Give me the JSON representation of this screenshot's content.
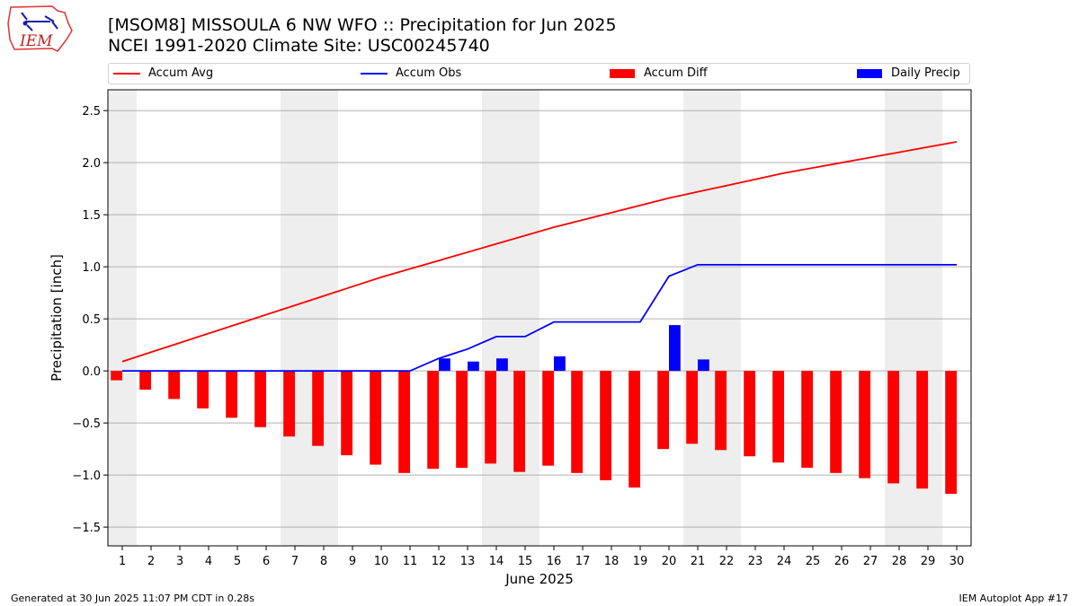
{
  "header": {
    "title": "[MSOM8] MISSOULA 6 NW WFO :: Precipitation for Jun 2025",
    "subtitle": "NCEI 1991-2020 Climate Site: USC00245740",
    "logo_text": "IEM"
  },
  "legend": {
    "items": [
      {
        "label": "Accum Avg",
        "kind": "line",
        "color": "#ff0000"
      },
      {
        "label": "Accum Obs",
        "kind": "line",
        "color": "#0000ff"
      },
      {
        "label": "Accum Diff",
        "kind": "box",
        "color": "#ff0000"
      },
      {
        "label": "Daily Precip",
        "kind": "box",
        "color": "#0000ff"
      }
    ]
  },
  "footer": {
    "generated": "Generated at 30 Jun 2025 11:07 PM CDT in 0.28s",
    "app": "IEM Autoplot App #17"
  },
  "chart_data": {
    "type": "bar",
    "xlabel": "June 2025",
    "ylabel": "Precipitation [inch]",
    "x": [
      1,
      2,
      3,
      4,
      5,
      6,
      7,
      8,
      9,
      10,
      11,
      12,
      13,
      14,
      15,
      16,
      17,
      18,
      19,
      20,
      21,
      22,
      23,
      24,
      25,
      26,
      27,
      28,
      29,
      30
    ],
    "xlim": [
      0.5,
      30.5
    ],
    "ylim": [
      -1.68,
      2.7
    ],
    "yticks": [
      -1.5,
      -1.0,
      -0.5,
      0.0,
      0.5,
      1.0,
      1.5,
      2.0,
      2.5
    ],
    "ytick_labels": [
      "−1.5",
      "−1.0",
      "−0.5",
      "0.0",
      "0.5",
      "1.0",
      "1.5",
      "2.0",
      "2.5"
    ],
    "grid": "horizontal",
    "weekend_days": [
      1,
      7,
      8,
      14,
      15,
      21,
      22,
      28,
      29
    ],
    "colors": {
      "avg": "#ff0000",
      "obs": "#0000ff",
      "diff": "#ff0000",
      "daily": "#0000ff",
      "weekend": "#eeeeee",
      "grid": "#b0b0b0"
    },
    "series": [
      {
        "name": "Accum Avg",
        "type": "line",
        "values": [
          0.09,
          0.18,
          0.27,
          0.36,
          0.45,
          0.54,
          0.63,
          0.72,
          0.81,
          0.9,
          0.98,
          1.06,
          1.14,
          1.22,
          1.3,
          1.38,
          1.45,
          1.52,
          1.59,
          1.66,
          1.72,
          1.78,
          1.84,
          1.9,
          1.95,
          2.0,
          2.05,
          2.1,
          2.15,
          2.2
        ]
      },
      {
        "name": "Accum Obs",
        "type": "line",
        "values": [
          0,
          0,
          0,
          0,
          0,
          0,
          0,
          0,
          0,
          0,
          0,
          0.12,
          0.21,
          0.33,
          0.33,
          0.47,
          0.47,
          0.47,
          0.47,
          0.91,
          1.02,
          1.02,
          1.02,
          1.02,
          1.02,
          1.02,
          1.02,
          1.02,
          1.02,
          1.02
        ]
      },
      {
        "name": "Accum Diff",
        "type": "bar",
        "values": [
          -0.09,
          -0.18,
          -0.27,
          -0.36,
          -0.45,
          -0.54,
          -0.63,
          -0.72,
          -0.81,
          -0.9,
          -0.98,
          -0.94,
          -0.93,
          -0.89,
          -0.97,
          -0.91,
          -0.98,
          -1.05,
          -1.12,
          -0.75,
          -0.7,
          -0.76,
          -0.82,
          -0.88,
          -0.93,
          -0.98,
          -1.03,
          -1.08,
          -1.13,
          -1.18
        ]
      },
      {
        "name": "Daily Precip",
        "type": "bar",
        "values": [
          0,
          0,
          0,
          0,
          0,
          0,
          0,
          0,
          0,
          0,
          0,
          0.12,
          0.09,
          0.12,
          0,
          0.14,
          0,
          0,
          0,
          0.44,
          0.11,
          0,
          0,
          0,
          0,
          0,
          0,
          0,
          0,
          0
        ]
      }
    ]
  }
}
